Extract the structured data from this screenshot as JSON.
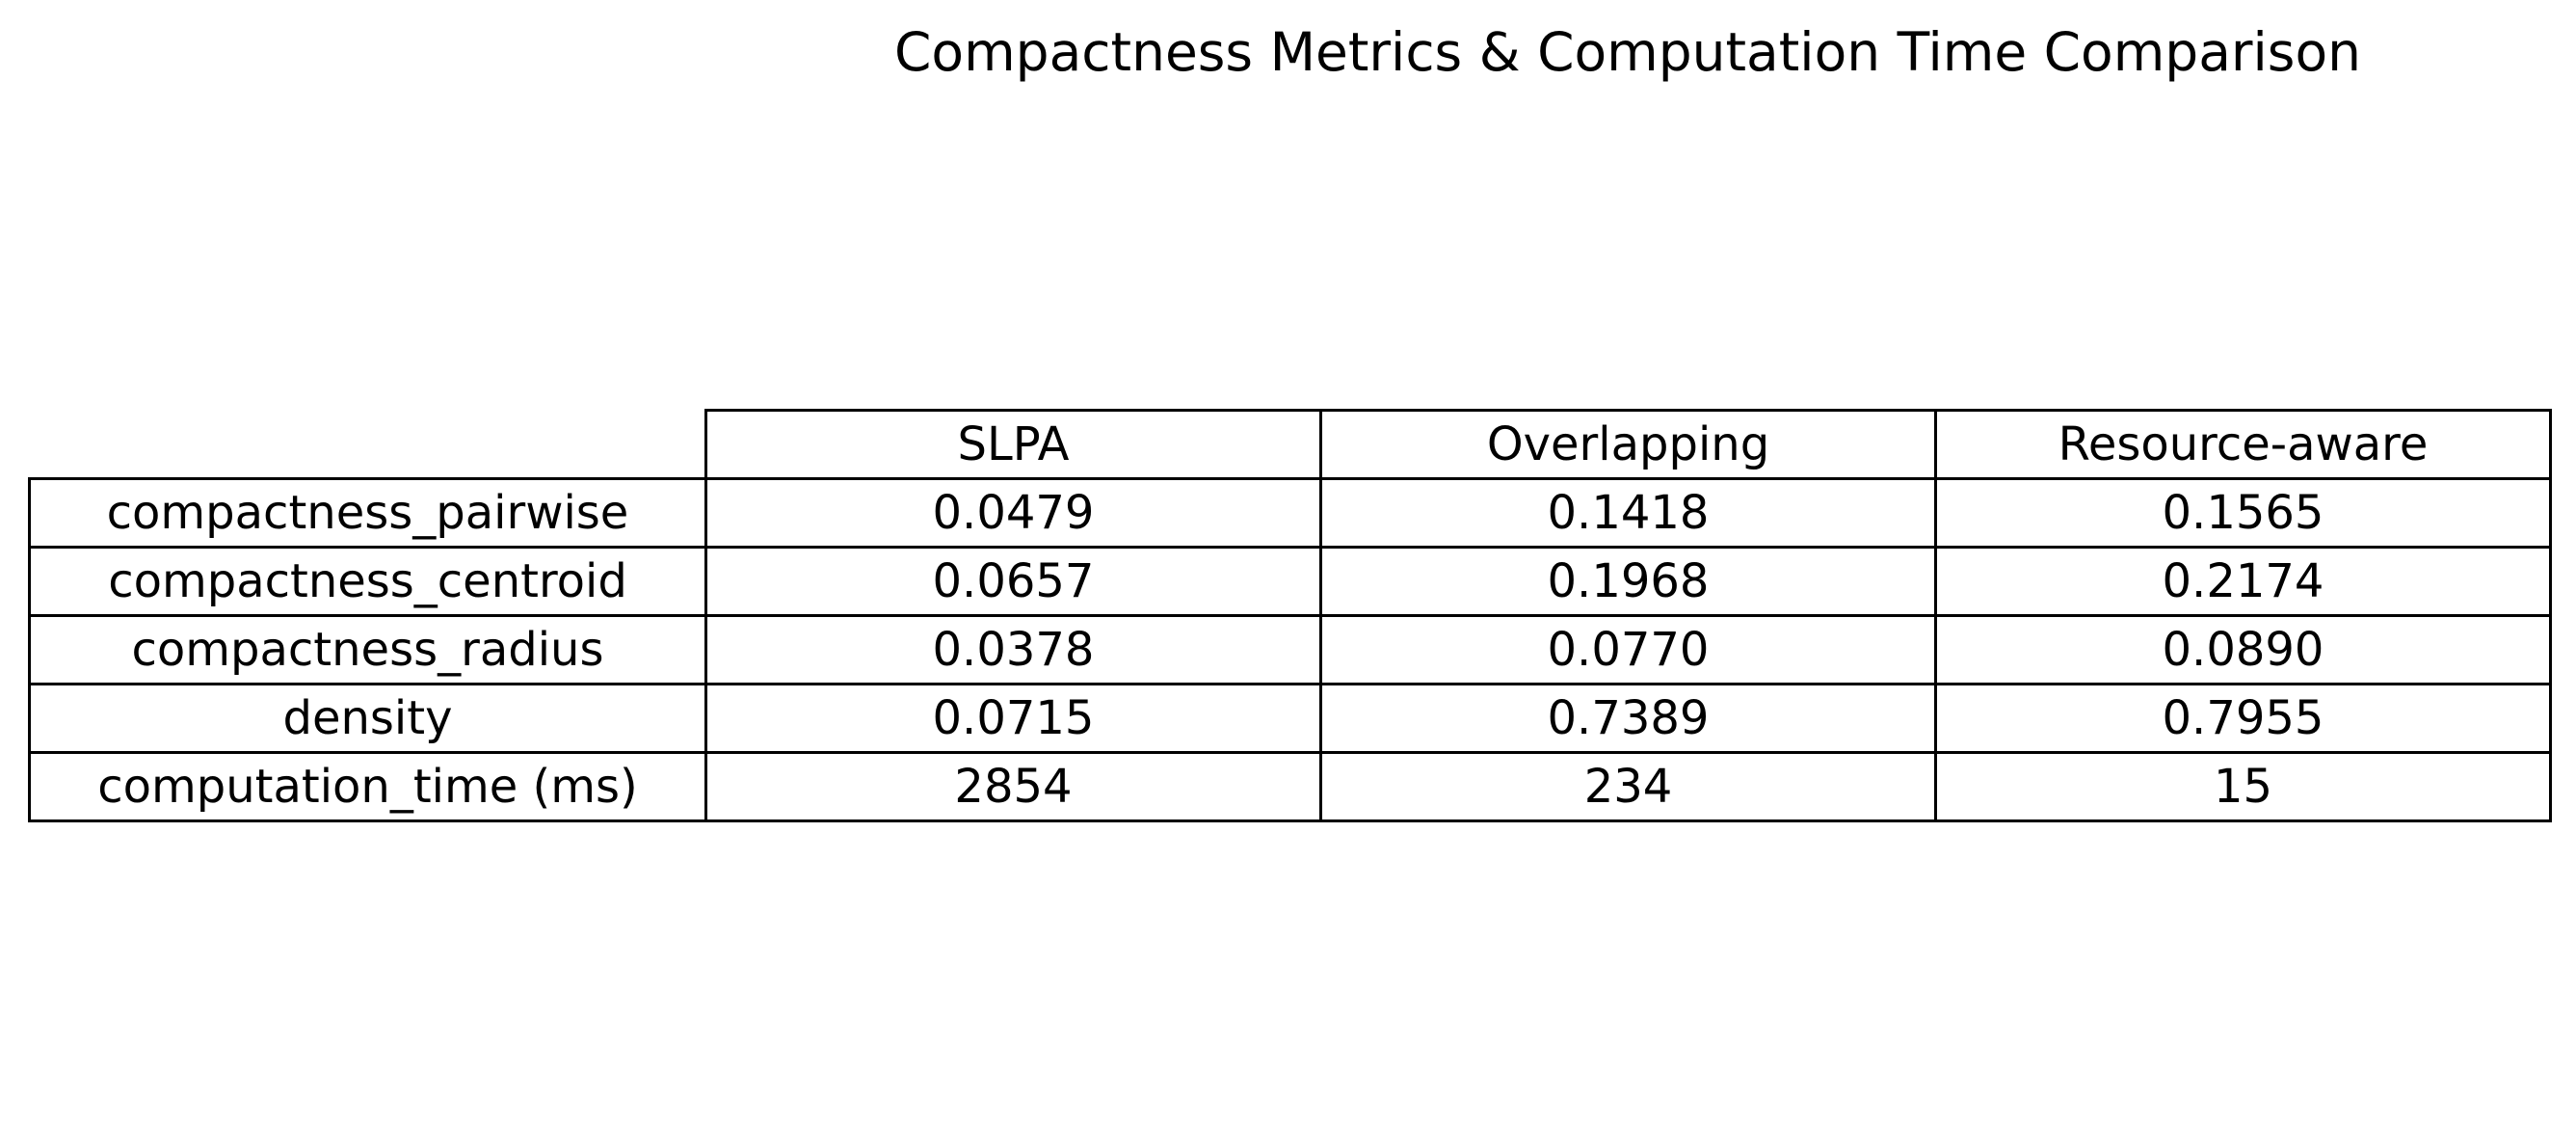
{
  "chart_data": {
    "type": "table",
    "title": "Compactness Metrics & Computation Time Comparison",
    "columns": [
      "SLPA",
      "Overlapping",
      "Resource-aware"
    ],
    "rows": [
      {
        "label": "compactness_pairwise",
        "values": [
          "0.0479",
          "0.1418",
          "0.1565"
        ]
      },
      {
        "label": "compactness_centroid",
        "values": [
          "0.0657",
          "0.1968",
          "0.2174"
        ]
      },
      {
        "label": "compactness_radius",
        "values": [
          "0.0378",
          "0.0770",
          "0.0890"
        ]
      },
      {
        "label": "density",
        "values": [
          "0.0715",
          "0.7389",
          "0.7955"
        ]
      },
      {
        "label": "computation_time (ms)",
        "values": [
          "2854",
          "234",
          "15"
        ]
      }
    ]
  }
}
